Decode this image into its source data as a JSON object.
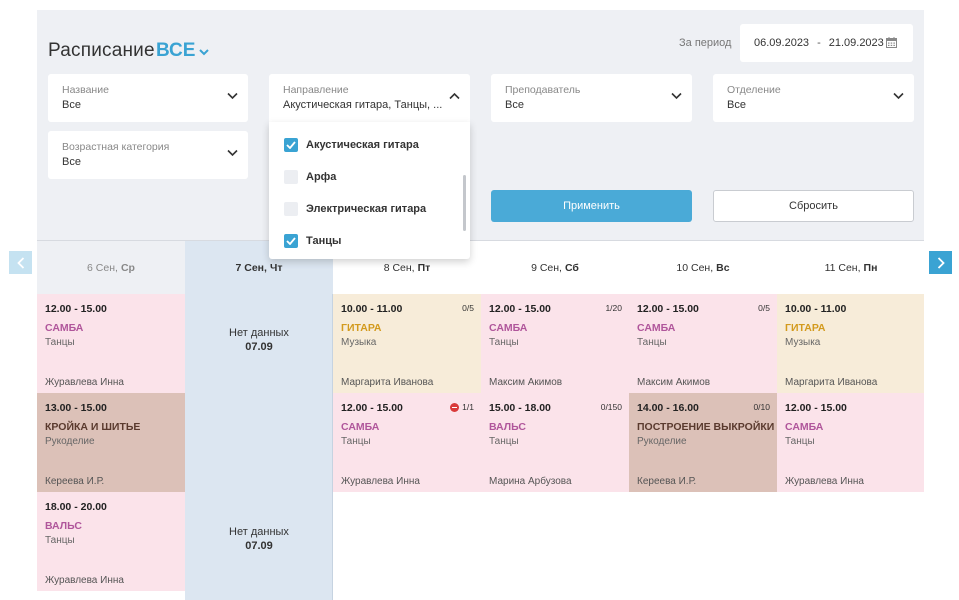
{
  "header": {
    "title": "Расписание",
    "filter_value": "ВСЕ",
    "period_label": "За период",
    "date_from": "06.09.2023",
    "date_separator": "-",
    "date_to": "21.09.2023"
  },
  "filters": {
    "name": {
      "label": "Название",
      "value": "Все"
    },
    "direction": {
      "label": "Направление",
      "value": "Акустическая гитара, Танцы, ..."
    },
    "teacher": {
      "label": "Преподаватель",
      "value": "Все"
    },
    "department": {
      "label": "Отделение",
      "value": "Все"
    },
    "age": {
      "label": "Возрастная категория",
      "value": "Все"
    }
  },
  "dropdown": {
    "options": [
      {
        "label": "Акустическая гитара",
        "checked": true
      },
      {
        "label": "Арфа",
        "checked": false
      },
      {
        "label": "Электрическая гитара",
        "checked": false
      },
      {
        "label": "Танцы",
        "checked": true
      }
    ]
  },
  "buttons": {
    "apply": "Применить",
    "reset": "Сбросить"
  },
  "days": [
    {
      "num": "6 Сен,",
      "wd": "Ср"
    },
    {
      "num": "7 Сен,",
      "wd": "Чт"
    },
    {
      "num": "8 Сен,",
      "wd": "Пт"
    },
    {
      "num": "9 Сен,",
      "wd": "Сб"
    },
    {
      "num": "10 Сен,",
      "wd": "Вс"
    },
    {
      "num": "11 Сен,",
      "wd": "Пн"
    }
  ],
  "nodata": [
    {
      "text": "Нет данных",
      "date": "07.09"
    },
    {
      "text": "Нет данных",
      "date": "07.09"
    }
  ],
  "cards": [
    {
      "time": "12.00 - 15.00",
      "name": "САМБА",
      "cat": "Танцы",
      "teacher": "Журавлева Инна",
      "count": ""
    },
    {
      "time": "13.00 - 15.00",
      "name": "КРОЙКА И ШИТЬЕ",
      "cat": "Рукоделие",
      "teacher": "Кереева И.Р.",
      "count": ""
    },
    {
      "time": "18.00 - 20.00",
      "name": "ВАЛЬС",
      "cat": "Танцы",
      "teacher": "Журавлева Инна",
      "count": ""
    },
    {
      "time": "10.00 - 11.00",
      "name": "ГИТАРА",
      "cat": "Музыка",
      "teacher": "Маргарита Иванова",
      "count": "0/5"
    },
    {
      "time": "12.00 - 15.00",
      "name": "САМБА",
      "cat": "Танцы",
      "teacher": "Журавлева Инна",
      "count": "1/1"
    },
    {
      "time": "12.00 - 15.00",
      "name": "САМБА",
      "cat": "Танцы",
      "teacher": "Максим Акимов",
      "count": "1/20"
    },
    {
      "time": "15.00 - 18.00",
      "name": "ВАЛЬС",
      "cat": "Танцы",
      "teacher": "Марина Арбузова",
      "count": "0/150"
    },
    {
      "time": "12.00 - 15.00",
      "name": "САМБА",
      "cat": "Танцы",
      "teacher": "Максим Акимов",
      "count": "0/5"
    },
    {
      "time": "14.00 - 16.00",
      "name": "ПОСТРОЕНИЕ ВЫКРОЙКИ",
      "cat": "Рукоделие",
      "teacher": "Кереева И.Р.",
      "count": "0/10"
    },
    {
      "time": "10.00 - 11.00",
      "name": "ГИТАРА",
      "cat": "Музыка",
      "teacher": "Маргарита Иванова",
      "count": ""
    },
    {
      "time": "12.00 - 15.00",
      "name": "САМБА",
      "cat": "Танцы",
      "teacher": "Журавлева Инна",
      "count": ""
    }
  ],
  "colors": {
    "accent": "#3aa3d3",
    "dance_bg": "#fbe3ea",
    "dance_text": "#b0569b",
    "music_bg": "#f7ecd9",
    "music_text": "#d39a1d",
    "craft_bg": "#dcc1b8",
    "craft_text": "#5a3a2e"
  }
}
